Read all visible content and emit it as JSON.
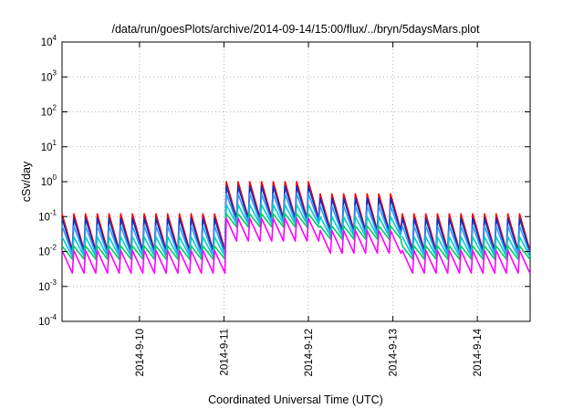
{
  "chart_data": {
    "type": "line",
    "title": "/data/run/goesPlots/archive/2014-09-14/15:00/flux/../bryn/5daysMars.plot",
    "xlabel": "Coordinated Universal Time (UTC)",
    "ylabel": "cSv/day",
    "yscale": "log",
    "ylim": [
      0.0001,
      10000
    ],
    "xlim": [
      "2014-09-09T02:00",
      "2014-09-14T15:00"
    ],
    "grid": true,
    "legend": "none",
    "y_ticks": [
      {
        "base": "10",
        "exp": "4"
      },
      {
        "base": "10",
        "exp": "3"
      },
      {
        "base": "10",
        "exp": "2"
      },
      {
        "base": "10",
        "exp": "1"
      },
      {
        "base": "10",
        "exp": "0"
      },
      {
        "base": "10",
        "exp": "-1"
      },
      {
        "base": "10",
        "exp": "-2"
      },
      {
        "base": "10",
        "exp": "-3"
      },
      {
        "base": "10",
        "exp": "-4"
      }
    ],
    "x_ticks": [
      "2014-9-10",
      "2014-9-11",
      "2014-9-12",
      "2014-9-13",
      "2014-9-14"
    ],
    "pattern": {
      "cycles_per_day": 7.2,
      "start": "2014-09-09T02:00",
      "end": "2014-09-14T15:00",
      "segments": [
        {
          "from": "2014-09-09T02:00",
          "to": "2014-09-11T00:00",
          "peak_top": 0.12
        },
        {
          "from": "2014-09-11T00:00",
          "to": "2014-09-12T00:00",
          "peak_top": 1.0
        },
        {
          "from": "2014-09-12T00:00",
          "to": "2014-09-13T00:00",
          "peak_top": 0.45
        },
        {
          "from": "2014-09-13T00:00",
          "to": "2014-09-14T15:00",
          "peak_top": 0.12
        }
      ]
    },
    "series": [
      {
        "color": "#ff0000",
        "peak_factor": 1.0,
        "trough_factor": 0.09
      },
      {
        "color": "#0033cc",
        "peak_factor": 0.75,
        "trough_factor": 0.08
      },
      {
        "color": "#3399ff",
        "peak_factor": 0.45,
        "trough_factor": 0.07
      },
      {
        "color": "#00cccc",
        "peak_factor": 0.22,
        "trough_factor": 0.06
      },
      {
        "color": "#00cc66",
        "peak_factor": 0.12,
        "trough_factor": 0.05
      },
      {
        "color": "#ff00ff",
        "peak_factor": 0.09,
        "trough_factor": 0.02
      }
    ]
  }
}
